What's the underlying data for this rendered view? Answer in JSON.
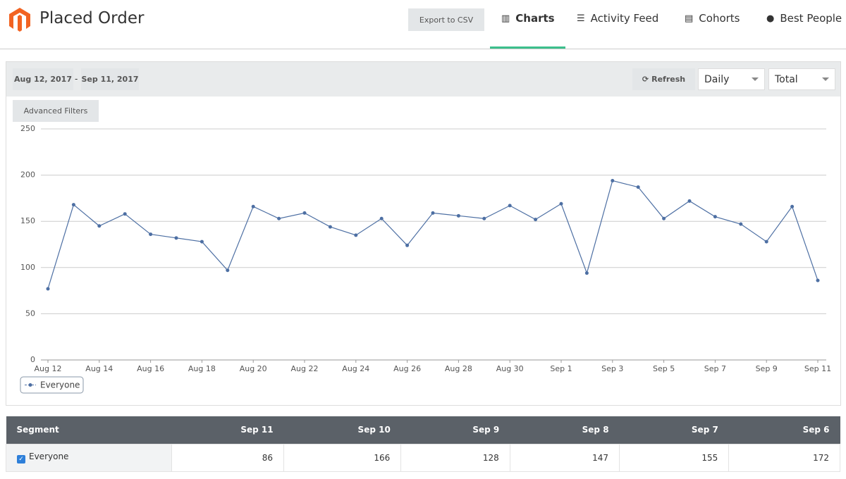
{
  "header": {
    "title": "Placed Order",
    "export_button": "Export to CSV",
    "tabs": [
      "Charts",
      "Activity Feed",
      "Cohorts",
      "Best People"
    ]
  },
  "filters": {
    "start_date": "Aug 12, 2017",
    "separator": "-",
    "end_date": "Sep 11, 2017",
    "refresh": "Refresh",
    "interval": "Daily",
    "measure": "Total",
    "advanced_filters": "Advanced Filters"
  },
  "chart_data": {
    "type": "line",
    "categories": [
      "Aug 12",
      null,
      "Aug 14",
      null,
      "Aug 16",
      null,
      "Aug 18",
      null,
      "Aug 20",
      null,
      "Aug 22",
      null,
      "Aug 24",
      null,
      "Aug 26",
      null,
      "Aug 28",
      null,
      "Aug 30",
      null,
      "Sep 1",
      null,
      "Sep 3",
      null,
      "Sep 5",
      null,
      "Sep 7",
      null,
      "Sep 9",
      null,
      "Sep 11"
    ],
    "series": [
      {
        "name": "Everyone",
        "color": "#4d6fa3",
        "values": [
          77,
          168,
          145,
          158,
          136,
          132,
          128,
          97,
          166,
          153,
          159,
          144,
          135,
          153,
          124,
          159,
          156,
          153,
          167,
          152,
          169,
          94,
          194,
          187,
          153,
          172,
          155,
          147,
          128,
          166,
          86
        ]
      }
    ],
    "ylim": [
      0,
      250
    ],
    "yticks": [
      0,
      50,
      100,
      150,
      200,
      250
    ],
    "grid": true
  },
  "table": {
    "columns": [
      "Segment",
      "Sep 11",
      "Sep 10",
      "Sep 9",
      "Sep 8",
      "Sep 7",
      "Sep 6"
    ],
    "rows": [
      [
        "Everyone",
        86,
        166,
        128,
        147,
        155,
        172
      ]
    ]
  }
}
